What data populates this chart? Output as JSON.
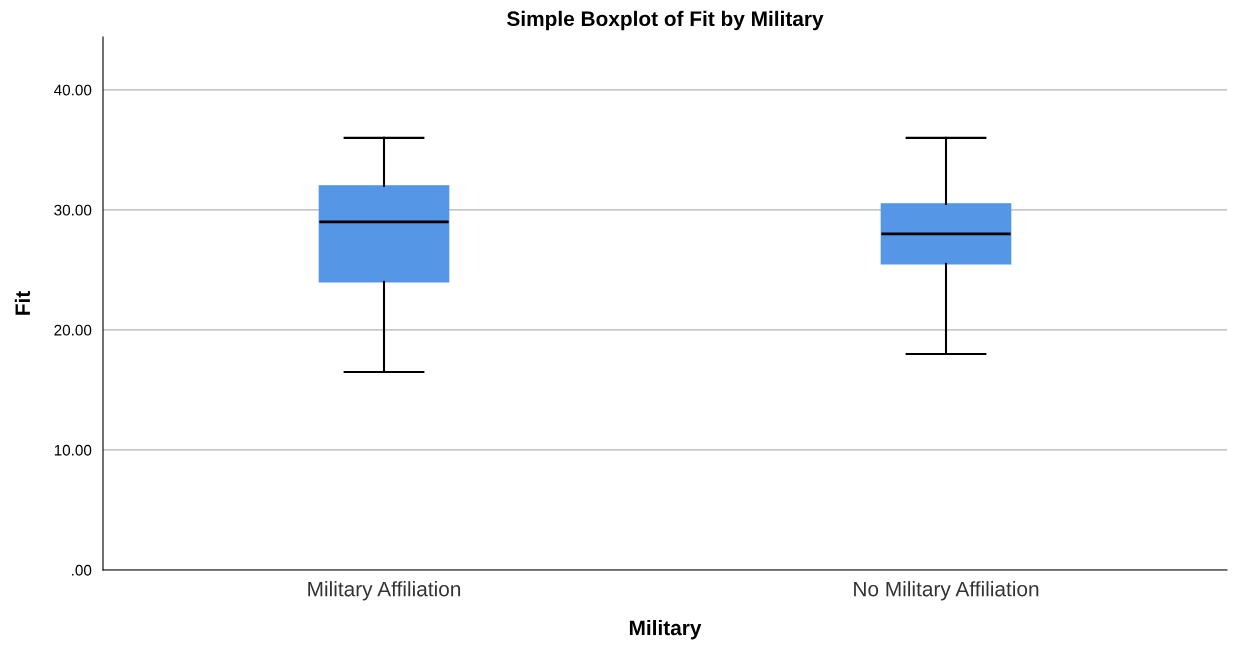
{
  "chart_data": {
    "type": "box",
    "title": "Simple Boxplot of Fit by Military",
    "xlabel": "Military",
    "ylabel": "Fit",
    "categories": [
      "Military Affiliation",
      "No Military Affiliation"
    ],
    "series": [
      {
        "color": "#5596e6",
        "boxes": [
          {
            "low": 16.5,
            "q1": 24,
            "median": 29,
            "q3": 32,
            "high": 36
          },
          {
            "low": 18,
            "q1": 25.5,
            "median": 28,
            "q3": 30.5,
            "high": 36
          }
        ]
      }
    ],
    "ylim": [
      0,
      44.4
    ],
    "yticks": [
      {
        "value": 0,
        "label": ".00"
      },
      {
        "value": 10,
        "label": "10.00"
      },
      {
        "value": 20,
        "label": "20.00"
      },
      {
        "value": 30,
        "label": "30.00"
      },
      {
        "value": 40,
        "label": "40.00"
      }
    ],
    "grid": "y"
  }
}
